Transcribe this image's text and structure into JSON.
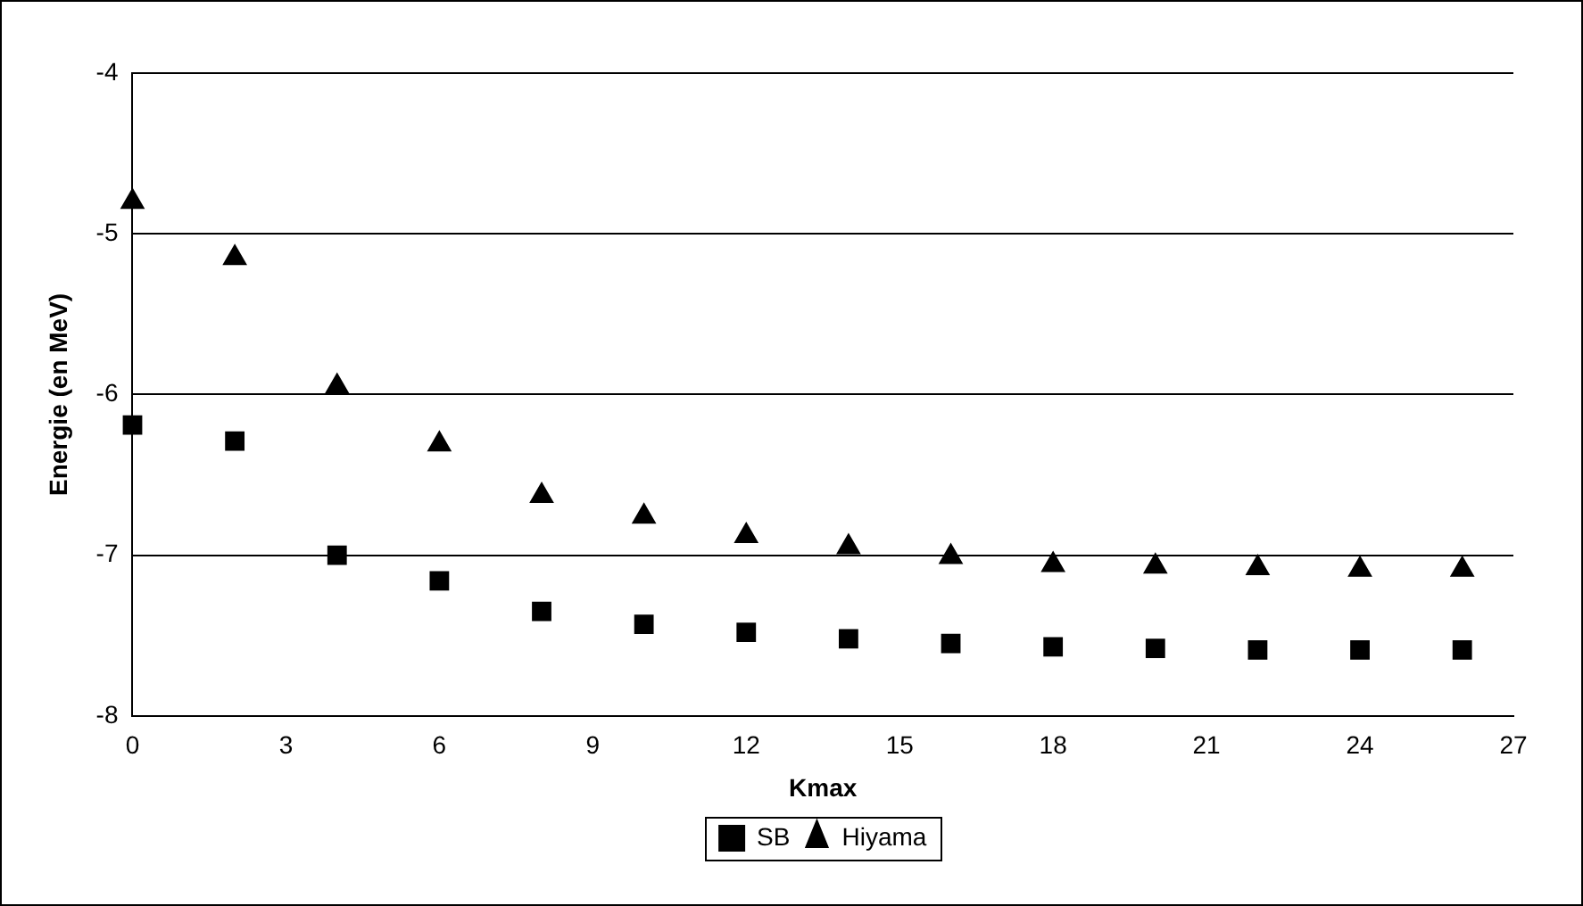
{
  "chart_data": {
    "type": "scatter",
    "xlabel": "Kmax",
    "ylabel": "Energie (en MeV)",
    "xlim": [
      0,
      27
    ],
    "xticks": [
      0,
      3,
      6,
      9,
      12,
      15,
      18,
      21,
      24,
      27
    ],
    "ylim": [
      -8,
      -4
    ],
    "yticks": [
      -8,
      -7,
      -6,
      -5,
      -4
    ],
    "grid": "y",
    "legend": "bottom",
    "series": [
      {
        "name": "SB",
        "color": "#000000",
        "marker": "square",
        "x": [
          0,
          2,
          4,
          6,
          8,
          10,
          12,
          14,
          16,
          18,
          20,
          22,
          24,
          26
        ],
        "values": [
          -6.19,
          -6.29,
          -7.0,
          -7.16,
          -7.35,
          -7.43,
          -7.48,
          -7.52,
          -7.55,
          -7.57,
          -7.58,
          -7.59,
          -7.59,
          -7.59
        ]
      },
      {
        "name": "Hiyama",
        "color": "#000000",
        "marker": "triangle",
        "x": [
          0,
          2,
          4,
          6,
          8,
          10,
          12,
          14,
          16,
          18,
          20,
          22,
          24,
          26
        ],
        "values": [
          -4.8,
          -5.15,
          -5.95,
          -6.31,
          -6.63,
          -6.76,
          -6.88,
          -6.95,
          -7.01,
          -7.06,
          -7.07,
          -7.08,
          -7.09,
          -7.09
        ]
      }
    ]
  }
}
